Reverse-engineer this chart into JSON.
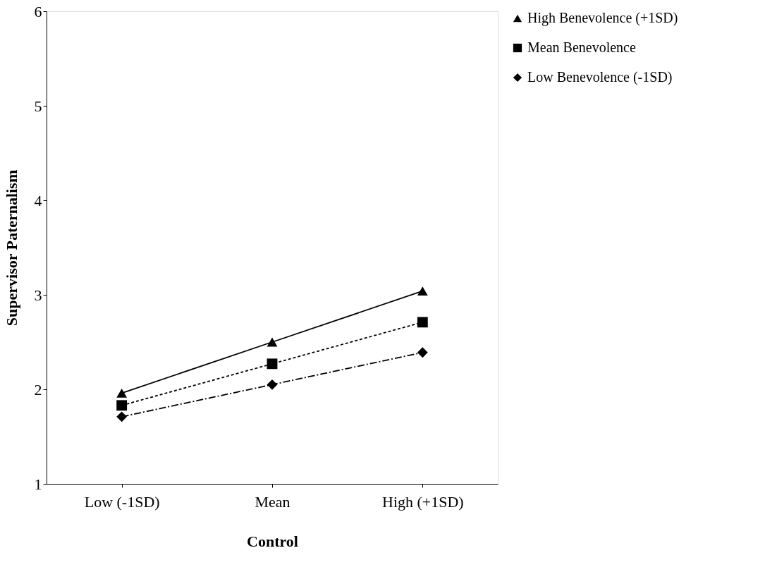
{
  "chart_data": {
    "type": "line",
    "xlabel": "Control",
    "ylabel": "Supervisor Paternalism",
    "categories": [
      "Low (-1SD)",
      "Mean",
      "High (+1SD)"
    ],
    "series": [
      {
        "name": "High Benevolence (+1SD)",
        "color": "#000000",
        "values": [
          1.96,
          2.5,
          3.04
        ],
        "marker": "triangle",
        "line_style": "solid"
      },
      {
        "name": "Mean Benevolence",
        "color": "#000000",
        "values": [
          1.83,
          2.27,
          2.71
        ],
        "marker": "square",
        "line_style": "dashed"
      },
      {
        "name": "Low Benevolence (-1SD)",
        "color": "#000000",
        "values": [
          1.71,
          2.05,
          2.39
        ],
        "marker": "diamond",
        "line_style": "dashdot"
      }
    ],
    "ylim": [
      1,
      6
    ],
    "yticks": [
      1,
      2,
      3,
      4,
      5,
      6
    ],
    "grid": false,
    "legend": "top right"
  }
}
